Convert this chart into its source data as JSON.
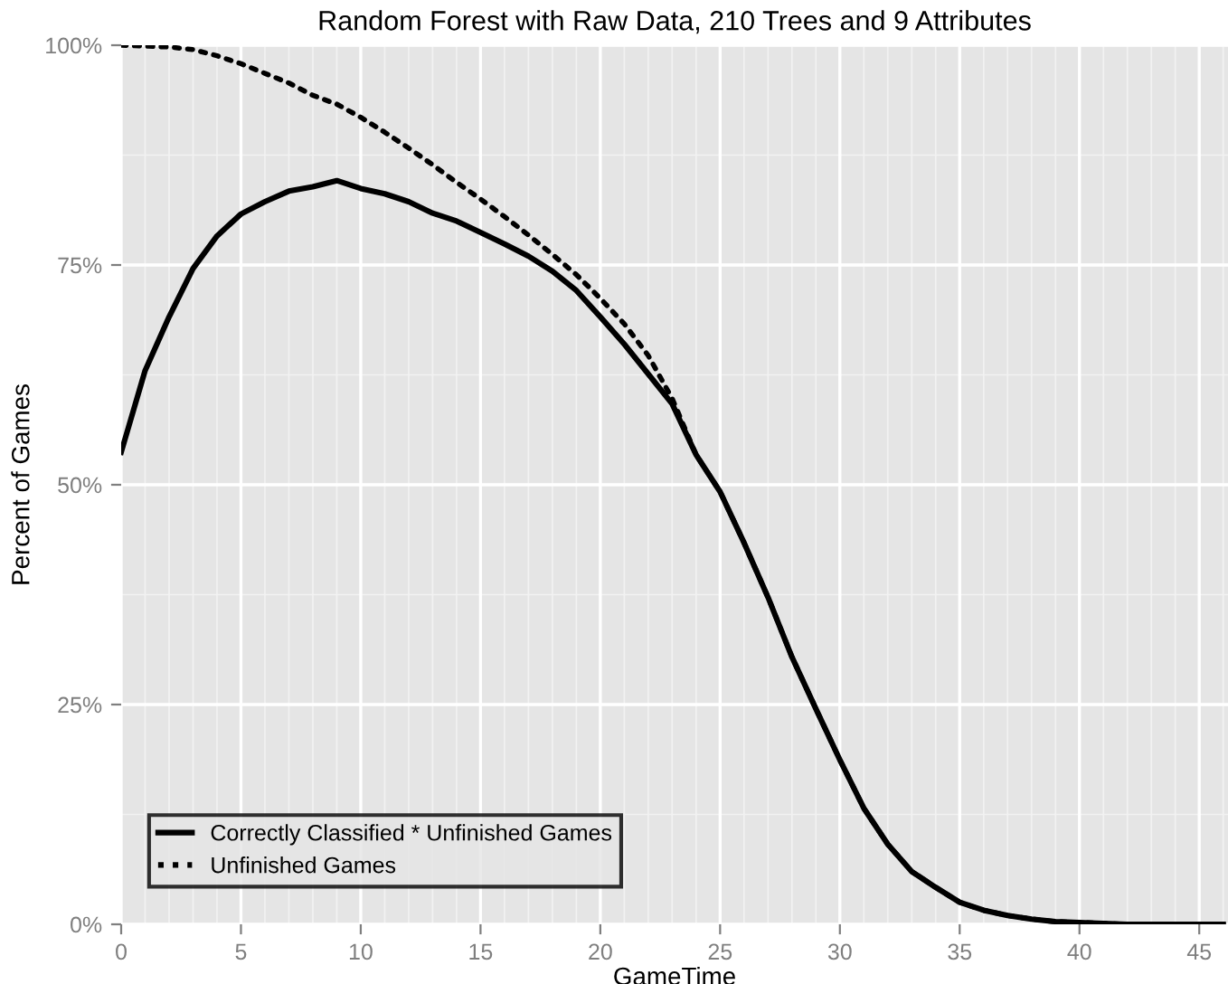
{
  "chart_data": {
    "type": "line",
    "title": "Random Forest with Raw Data, 210 Trees and 9 Attributes",
    "xlabel": "GameTime",
    "ylabel": "Percent of Games",
    "x": [
      0,
      1,
      2,
      3,
      4,
      5,
      6,
      7,
      8,
      9,
      10,
      11,
      12,
      13,
      14,
      15,
      16,
      17,
      18,
      19,
      20,
      21,
      22,
      23,
      24,
      25,
      26,
      27,
      28,
      29,
      30,
      31,
      32,
      33,
      34,
      35,
      36,
      37,
      38,
      39,
      40,
      41,
      42,
      43,
      44,
      45,
      46
    ],
    "series": [
      {
        "name": "Correctly Classified * Unfinished Games",
        "color": "#000000",
        "line_style": "solid",
        "values": [
          53.7,
          63.0,
          69.1,
          74.6,
          78.3,
          80.8,
          82.2,
          83.4,
          83.9,
          84.6,
          83.7,
          83.1,
          82.2,
          80.9,
          80.0,
          78.7,
          77.4,
          76.0,
          74.3,
          72.1,
          69.1,
          66.0,
          62.6,
          59.2,
          53.4,
          49.2,
          43.4,
          37.2,
          30.4,
          24.5,
          18.7,
          13.2,
          9.1,
          6.0,
          4.2,
          2.5,
          1.6,
          1.0,
          0.6,
          0.3,
          0.2,
          0.1,
          0,
          0,
          0,
          0,
          0
        ]
      },
      {
        "name": "Unfinished Games",
        "color": "#000000",
        "line_style": "dotted",
        "values": [
          100,
          99.9,
          99.8,
          99.5,
          98.8,
          97.9,
          96.8,
          95.7,
          94.3,
          93.3,
          91.8,
          90.1,
          88.3,
          86.4,
          84.4,
          82.5,
          80.5,
          78.4,
          76.2,
          73.9,
          71.2,
          68.3,
          64.7,
          59.8,
          53.4,
          49.2,
          43.4,
          37.2,
          30.4,
          24.5,
          18.7,
          13.2,
          9.1,
          6.0,
          4.2,
          2.5,
          1.6,
          1.0,
          0.6,
          0.3,
          0.2,
          0.1,
          0,
          0,
          0,
          0,
          0
        ]
      }
    ],
    "xlim": [
      0,
      46.2
    ],
    "xticks": [
      0,
      5,
      10,
      15,
      20,
      25,
      30,
      35,
      40,
      45
    ],
    "ylim": [
      0,
      100
    ],
    "yticks": [
      {
        "value": 0,
        "label": "0%"
      },
      {
        "value": 25,
        "label": "25%"
      },
      {
        "value": 50,
        "label": "50%"
      },
      {
        "value": 75,
        "label": "75%"
      },
      {
        "value": 100,
        "label": "100%"
      }
    ],
    "grid": true,
    "legend": "bottom left",
    "marker": "none"
  }
}
